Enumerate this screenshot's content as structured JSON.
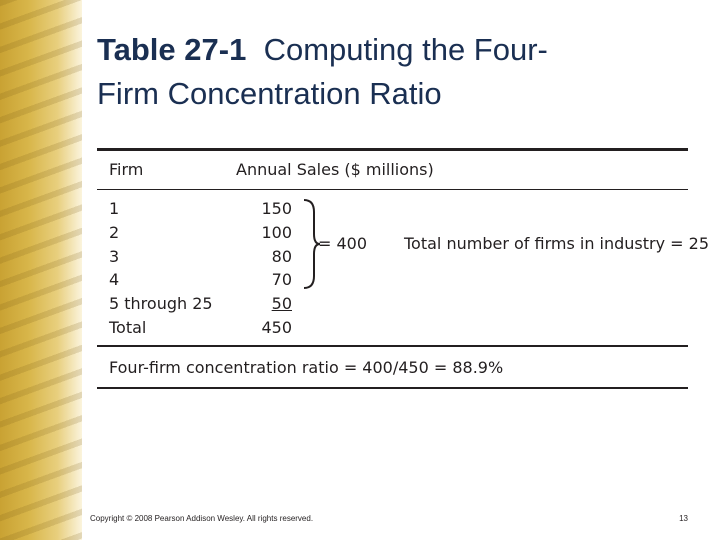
{
  "title": {
    "label": "Table 27-1",
    "text": "Computing the Four-Firm Concentration Ratio"
  },
  "table": {
    "header": [
      "Firm",
      "Annual Sales ($ millions)"
    ],
    "rows": [
      [
        "1",
        150
      ],
      [
        "2",
        100
      ],
      [
        "3",
        80
      ],
      [
        "4",
        70
      ],
      [
        "5 through 25",
        50
      ],
      [
        "Total",
        450
      ]
    ],
    "bracket_sum": "= 400",
    "note": "Total number of firms in industry = 25",
    "result": "Four-firm concentration ratio = 400/450 = 88.9%"
  },
  "footer": {
    "copyright": "Copyright © 2008 Pearson Addison Wesley. All rights reserved.",
    "page": 13
  }
}
